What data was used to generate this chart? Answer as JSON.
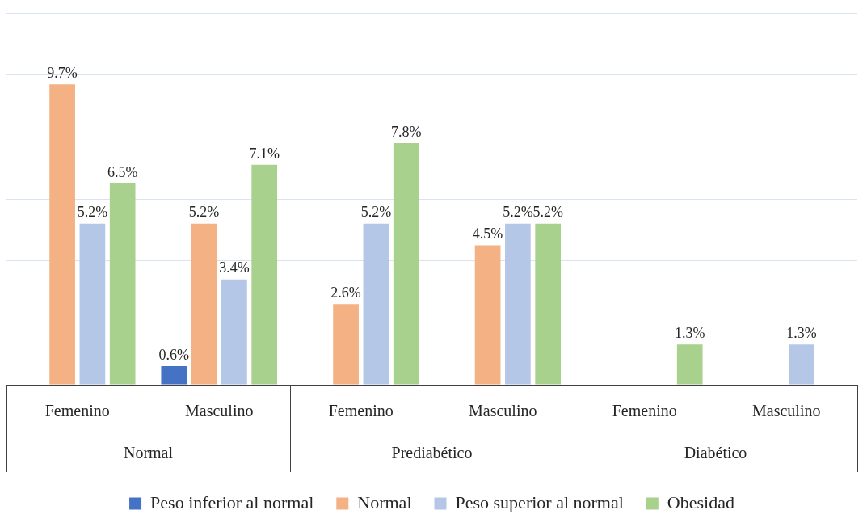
{
  "chart_data": {
    "type": "bar",
    "categories": [
      "Femenino",
      "Masculino",
      "Femenino",
      "Masculino",
      "Femenino",
      "Masculino"
    ],
    "annotations": [
      "Normal",
      "Prediabético",
      "Diabético"
    ],
    "series": [
      {
        "name": "Peso inferior al normal",
        "color": "#4472c4",
        "values": [
          null,
          0.6,
          null,
          null,
          null,
          null
        ],
        "value_labels": [
          null,
          "0.6%",
          null,
          null,
          null,
          null
        ]
      },
      {
        "name": "Normal",
        "color": "#f4b183",
        "values": [
          9.7,
          5.2,
          2.6,
          4.5,
          null,
          null
        ],
        "value_labels": [
          "9.7%",
          "5.2%",
          "2.6%",
          "4.5%",
          null,
          null
        ]
      },
      {
        "name": "Peso superior al normal",
        "color": "#b4c7e7",
        "values": [
          5.2,
          3.4,
          5.2,
          5.2,
          null,
          1.3
        ],
        "value_labels": [
          "5.2%",
          "3.4%",
          "5.2%",
          "5.2%",
          null,
          "1.3%"
        ]
      },
      {
        "name": "Obesidad",
        "color": "#a9d18e",
        "values": [
          6.5,
          7.1,
          7.8,
          5.2,
          1.3,
          null
        ],
        "value_labels": [
          "6.5%",
          "7.1%",
          "7.8%",
          "5.2%",
          "1.3%",
          null
        ]
      }
    ],
    "tick_labels": "x",
    "grid": "y",
    "legend": "bottom"
  }
}
